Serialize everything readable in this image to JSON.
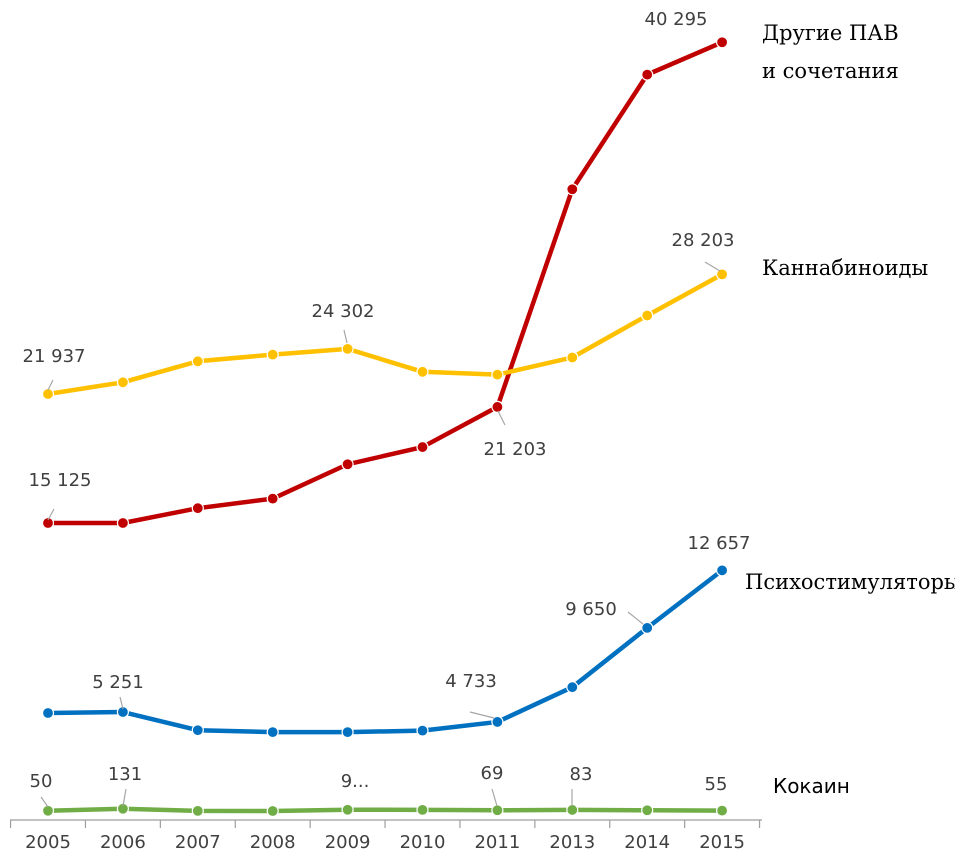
{
  "chart_data": {
    "type": "line",
    "categories": [
      "2005",
      "2006",
      "2007",
      "2008",
      "2009",
      "2010",
      "2011",
      "2013",
      "2014",
      "2015"
    ],
    "grid": false,
    "legend": "none",
    "series": [
      {
        "name": "Другие ПАВ и сочетания",
        "name_lines": [
          "Другие ПАВ",
          "и сочетания"
        ],
        "color": "#c00000",
        "values": [
          15125,
          15125,
          15900,
          16400,
          18200,
          19100,
          21203,
          32600,
          38600,
          40295
        ],
        "labels": {
          "0": "15 125",
          "6": "21 203",
          "9": "40 295"
        }
      },
      {
        "name": "Каннабиноиды",
        "name_lines": [
          "Каннабиноиды"
        ],
        "color": "#ffc000",
        "values": [
          21937,
          22550,
          23650,
          24000,
          24302,
          23100,
          22950,
          23850,
          26050,
          28203
        ],
        "labels": {
          "0": "21 937",
          "4": "24 302",
          "9": "28 203"
        }
      },
      {
        "name": "Психостимуляторы",
        "name_lines": [
          "Психостимуляторы"
        ],
        "color": "#0070c0",
        "values": [
          5200,
          5251,
          4300,
          4200,
          4200,
          4280,
          4733,
          6550,
          9650,
          12657
        ],
        "labels": {
          "1": "5 251",
          "6": "4 733",
          "8": "9 650",
          "9": "12 657"
        }
      },
      {
        "name": "Кокаин",
        "name_lines": [
          "Кокаин"
        ],
        "color": "#70ad47",
        "values": [
          50,
          131,
          45,
          40,
          90,
          85,
          69,
          83,
          70,
          55
        ],
        "labels": {
          "0": "50",
          "1": "131",
          "4": "9...",
          "6": "69",
          "7": "83",
          "9": "55"
        }
      }
    ]
  }
}
